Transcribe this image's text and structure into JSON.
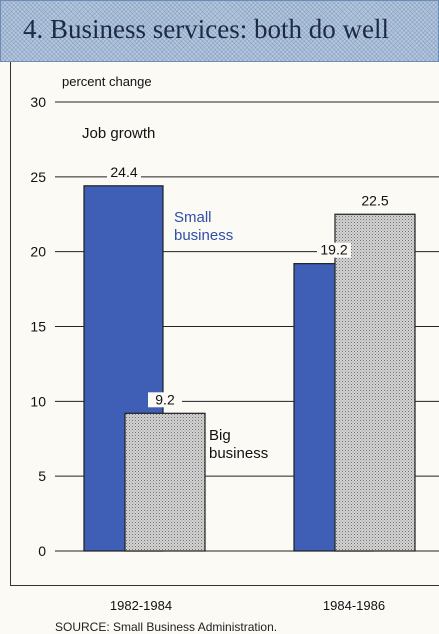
{
  "header": {
    "title": "4. Business services: both do well"
  },
  "source": "SOURCE: Small Business Administration.",
  "chart_data": {
    "type": "bar",
    "title": "4. Business services: both do well",
    "subtitle": "Job growth",
    "ylabel": "percent change",
    "xlabel": "",
    "ylim": [
      0,
      30
    ],
    "yticks": [
      0,
      5,
      10,
      15,
      20,
      25,
      30
    ],
    "grid": true,
    "categories": [
      "1982-1984",
      "1984-1986"
    ],
    "series": [
      {
        "name": "Small\nbusiness",
        "values": [
          24.4,
          19.2
        ],
        "color": "#3f5fb7"
      },
      {
        "name": "Big\nbusiness",
        "values": [
          9.2,
          22.5
        ],
        "color": "#c8c8c8"
      }
    ],
    "legend_placement": "inline",
    "source": "SOURCE: Small Business Administration."
  }
}
